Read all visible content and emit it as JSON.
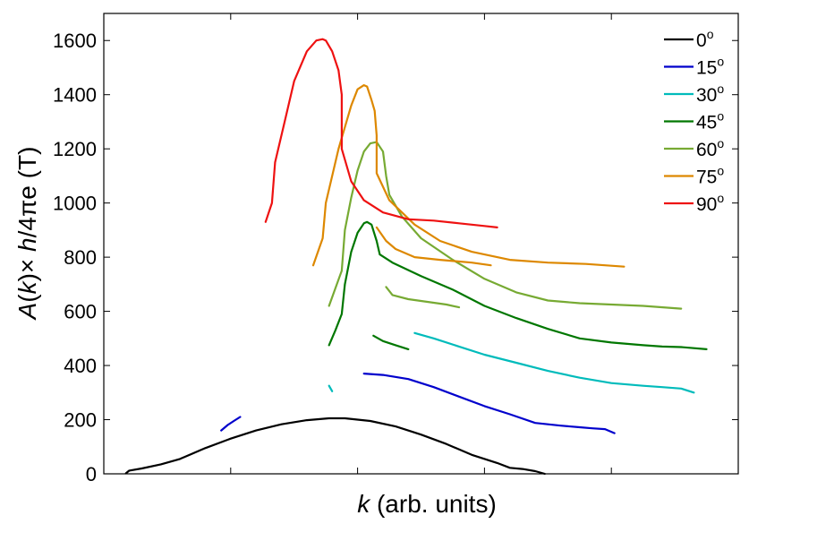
{
  "chart_data": {
    "type": "line",
    "xlabel": {
      "var": "k",
      "rest": " (arb. units)"
    },
    "ylabel": {
      "fn": "A",
      "var": "k",
      "mid": "× ",
      "h": "h",
      "tail": "/4πe (T)"
    },
    "xlim": [
      0,
      10
    ],
    "ylim": [
      0,
      1700
    ],
    "xticks": [
      2,
      4,
      6,
      8
    ],
    "yticks": [
      0,
      200,
      400,
      600,
      800,
      1000,
      1200,
      1400,
      1600
    ],
    "ytick_labels": [
      "0",
      "200",
      "400",
      "600",
      "800",
      "1000",
      "1200",
      "1400",
      "1600"
    ],
    "grid": false,
    "legend_position": "top-right",
    "series": [
      {
        "name": "0",
        "degree": "o",
        "color": "#000000",
        "segments": [
          [
            [
              0.35,
              2
            ],
            [
              0.4,
              12
            ],
            [
              0.6,
              20
            ],
            [
              0.9,
              35
            ],
            [
              1.2,
              55
            ],
            [
              1.6,
              95
            ],
            [
              2.0,
              130
            ],
            [
              2.4,
              160
            ],
            [
              2.8,
              183
            ],
            [
              3.2,
              198
            ],
            [
              3.55,
              205
            ],
            [
              3.8,
              205
            ],
            [
              4.2,
              195
            ],
            [
              4.6,
              175
            ],
            [
              5.0,
              145
            ],
            [
              5.4,
              110
            ],
            [
              5.8,
              70
            ],
            [
              6.2,
              40
            ],
            [
              6.4,
              22
            ],
            [
              6.6,
              18
            ],
            [
              6.8,
              10
            ],
            [
              6.95,
              0
            ]
          ]
        ]
      },
      {
        "name": "15",
        "degree": "o",
        "color": "#0000cc",
        "segments": [
          [
            [
              1.85,
              160
            ],
            [
              1.95,
              180
            ],
            [
              2.05,
              195
            ],
            [
              2.15,
              210
            ]
          ],
          [
            [
              4.1,
              370
            ],
            [
              4.4,
              365
            ],
            [
              4.8,
              350
            ],
            [
              5.2,
              320
            ],
            [
              5.6,
              285
            ],
            [
              6.0,
              250
            ],
            [
              6.4,
              220
            ],
            [
              6.8,
              188
            ],
            [
              7.2,
              178
            ],
            [
              7.5,
              172
            ],
            [
              7.7,
              168
            ],
            [
              7.9,
              165
            ],
            [
              8.05,
              150
            ]
          ]
        ]
      },
      {
        "name": "30",
        "degree": "o",
        "color": "#00bbbb",
        "segments": [
          [
            [
              3.55,
              325
            ],
            [
              3.6,
              305
            ]
          ],
          [
            [
              4.9,
              520
            ],
            [
              5.2,
              500
            ],
            [
              5.6,
              470
            ],
            [
              6.0,
              440
            ],
            [
              6.5,
              410
            ],
            [
              7.0,
              380
            ],
            [
              7.5,
              355
            ],
            [
              8.0,
              335
            ],
            [
              8.5,
              325
            ],
            [
              8.8,
              320
            ],
            [
              9.1,
              315
            ],
            [
              9.3,
              300
            ]
          ]
        ]
      },
      {
        "name": "45",
        "degree": "o",
        "color": "#007700",
        "segments": [
          [
            [
              3.55,
              475
            ],
            [
              3.65,
              530
            ],
            [
              3.75,
              590
            ],
            [
              3.8,
              700
            ],
            [
              3.9,
              820
            ],
            [
              4.0,
              890
            ],
            [
              4.1,
              925
            ],
            [
              4.15,
              930
            ],
            [
              4.22,
              920
            ],
            [
              4.3,
              860
            ],
            [
              4.35,
              810
            ],
            [
              4.55,
              780
            ],
            [
              5.0,
              730
            ],
            [
              5.5,
              680
            ],
            [
              6.0,
              620
            ],
            [
              6.5,
              575
            ],
            [
              7.0,
              535
            ],
            [
              7.5,
              500
            ],
            [
              8.0,
              485
            ],
            [
              8.5,
              475
            ],
            [
              8.8,
              470
            ],
            [
              9.1,
              468
            ],
            [
              9.5,
              460
            ]
          ],
          [
            [
              4.25,
              510
            ],
            [
              4.4,
              490
            ],
            [
              4.6,
              475
            ],
            [
              4.8,
              460
            ]
          ]
        ]
      },
      {
        "name": "60",
        "degree": "o",
        "color": "#77aa33",
        "segments": [
          [
            [
              3.55,
              620
            ],
            [
              3.75,
              750
            ],
            [
              3.8,
              900
            ],
            [
              3.9,
              1020
            ],
            [
              4.0,
              1120
            ],
            [
              4.1,
              1190
            ],
            [
              4.2,
              1220
            ],
            [
              4.3,
              1225
            ],
            [
              4.4,
              1190
            ],
            [
              4.45,
              1100
            ],
            [
              4.5,
              1030
            ],
            [
              4.7,
              950
            ],
            [
              5.0,
              870
            ],
            [
              5.5,
              790
            ],
            [
              6.0,
              720
            ],
            [
              6.5,
              670
            ],
            [
              7.0,
              640
            ],
            [
              7.5,
              630
            ],
            [
              8.0,
              625
            ],
            [
              8.5,
              620
            ],
            [
              9.1,
              610
            ]
          ],
          [
            [
              4.45,
              690
            ],
            [
              4.55,
              660
            ],
            [
              4.8,
              645
            ],
            [
              5.1,
              635
            ],
            [
              5.4,
              625
            ],
            [
              5.6,
              615
            ]
          ]
        ]
      },
      {
        "name": "75",
        "degree": "o",
        "color": "#dd8800",
        "segments": [
          [
            [
              3.3,
              770
            ],
            [
              3.45,
              870
            ],
            [
              3.5,
              1000
            ],
            [
              3.7,
              1200
            ],
            [
              3.9,
              1360
            ],
            [
              4.0,
              1420
            ],
            [
              4.1,
              1435
            ],
            [
              4.15,
              1430
            ],
            [
              4.22,
              1380
            ],
            [
              4.27,
              1340
            ],
            [
              4.3,
              1250
            ],
            [
              4.3,
              1110
            ],
            [
              4.5,
              1010
            ],
            [
              4.9,
              920
            ],
            [
              5.3,
              860
            ],
            [
              5.8,
              820
            ],
            [
              6.4,
              790
            ],
            [
              7.0,
              780
            ],
            [
              7.6,
              775
            ],
            [
              8.2,
              765
            ]
          ],
          [
            [
              4.3,
              910
            ],
            [
              4.45,
              860
            ],
            [
              4.6,
              830
            ],
            [
              4.9,
              800
            ],
            [
              5.3,
              790
            ],
            [
              5.8,
              780
            ],
            [
              6.1,
              770
            ]
          ]
        ]
      },
      {
        "name": "90",
        "degree": "o",
        "color": "#ee1111",
        "segments": [
          [
            [
              2.55,
              930
            ],
            [
              2.65,
              1000
            ],
            [
              2.7,
              1150
            ],
            [
              2.85,
              1300
            ],
            [
              3.0,
              1450
            ],
            [
              3.2,
              1560
            ],
            [
              3.35,
              1600
            ],
            [
              3.45,
              1605
            ],
            [
              3.5,
              1600
            ],
            [
              3.6,
              1560
            ],
            [
              3.7,
              1490
            ],
            [
              3.75,
              1400
            ],
            [
              3.75,
              1200
            ],
            [
              3.9,
              1080
            ],
            [
              4.1,
              1010
            ],
            [
              4.4,
              965
            ],
            [
              4.8,
              940
            ],
            [
              5.2,
              935
            ],
            [
              5.6,
              925
            ],
            [
              6.0,
              915
            ],
            [
              6.2,
              910
            ]
          ]
        ]
      }
    ]
  }
}
